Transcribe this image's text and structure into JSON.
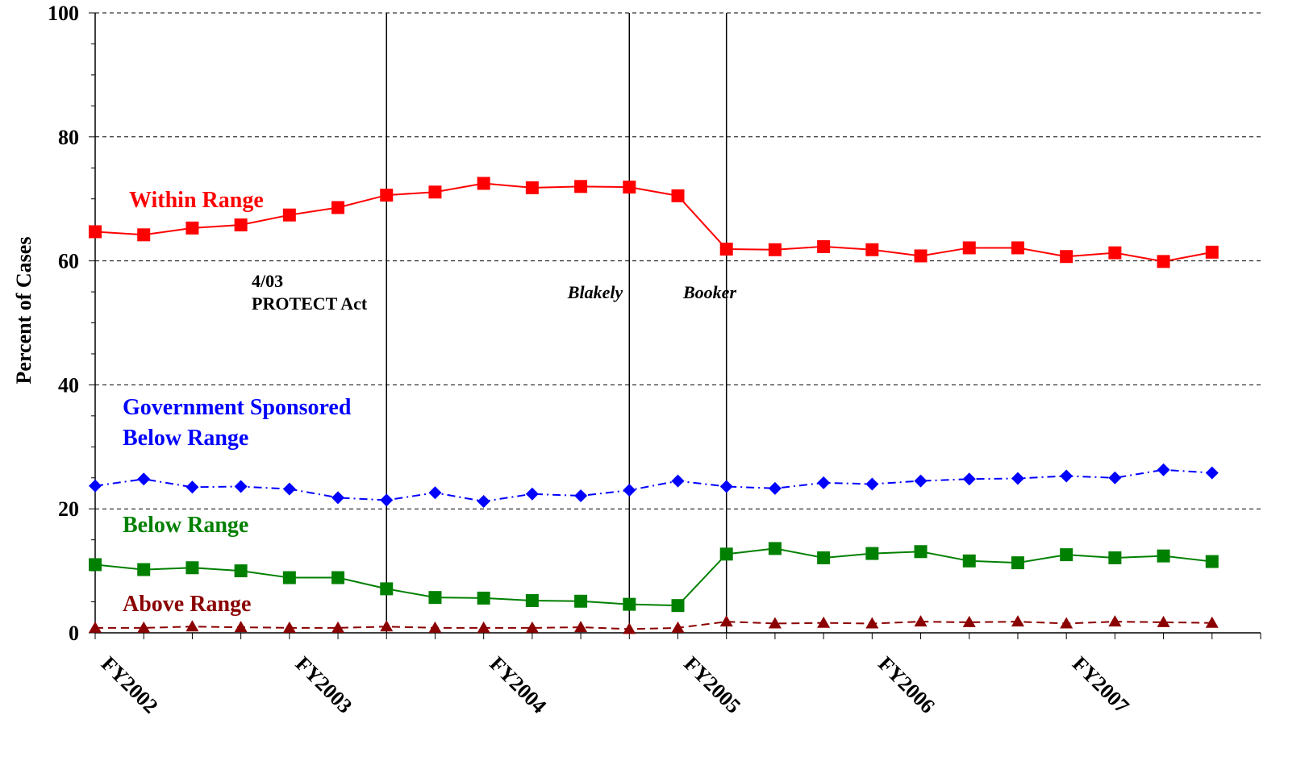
{
  "chart_data": {
    "type": "line",
    "title": "",
    "ylabel": "Percent of Cases",
    "xlabel": "",
    "ylim": [
      0,
      100
    ],
    "y_ticks": [
      "0",
      "20",
      "40",
      "60",
      "80",
      "100"
    ],
    "grid": "horizontal dashed at major y ticks",
    "x_labels": [
      {
        "label": "FY2002",
        "index": 0
      },
      {
        "label": "FY2003",
        "index": 4
      },
      {
        "label": "FY2004",
        "index": 8
      },
      {
        "label": "FY2005",
        "index": 12
      },
      {
        "label": "FY2006",
        "index": 16
      },
      {
        "label": "FY2007",
        "index": 20
      }
    ],
    "period_count": 24,
    "events": [
      {
        "label_lines": [
          "4/03",
          "PROTECT Act"
        ],
        "index": 6,
        "italic": false
      },
      {
        "label_lines": [
          "Blakely"
        ],
        "index": 11,
        "italic": true
      },
      {
        "label_lines": [
          "Booker"
        ],
        "index": 13,
        "italic": true
      }
    ],
    "series": [
      {
        "name": "Within Range",
        "label_lines": [
          "Within Range"
        ],
        "color": "#FF0000",
        "marker": "square",
        "line": "solid",
        "values": [
          64.7,
          64.2,
          65.3,
          65.8,
          67.4,
          68.6,
          70.6,
          71.1,
          72.5,
          71.8,
          72.0,
          71.9,
          70.5,
          61.9,
          61.8,
          62.3,
          61.8,
          60.8,
          62.1,
          62.1,
          60.7,
          61.3,
          59.9,
          61.4
        ]
      },
      {
        "name": "Government Sponsored Below Range",
        "label_lines": [
          "Government Sponsored",
          "Below Range"
        ],
        "color": "#0000FF",
        "marker": "diamond",
        "line": "dash-dot",
        "values": [
          23.7,
          24.8,
          23.5,
          23.6,
          23.2,
          21.8,
          21.4,
          22.6,
          21.2,
          22.4,
          22.1,
          23.0,
          24.5,
          23.6,
          23.3,
          24.2,
          24.0,
          24.5,
          24.8,
          24.9,
          25.3,
          25.0,
          26.3,
          25.8
        ]
      },
      {
        "name": "Below Range",
        "label_lines": [
          "Below Range"
        ],
        "color": "#008000",
        "marker": "square",
        "line": "solid",
        "values": [
          11.0,
          10.2,
          10.5,
          10.0,
          8.9,
          8.9,
          7.1,
          5.7,
          5.6,
          5.2,
          5.1,
          4.6,
          4.4,
          12.7,
          13.6,
          12.1,
          12.8,
          13.1,
          11.6,
          11.3,
          12.6,
          12.1,
          12.4,
          11.5
        ]
      },
      {
        "name": "Above Range",
        "label_lines": [
          "Above Range"
        ],
        "color": "#8B0000",
        "marker": "triangle",
        "line": "dashed",
        "values": [
          0.8,
          0.8,
          1.0,
          0.9,
          0.8,
          0.8,
          1.0,
          0.8,
          0.8,
          0.8,
          0.9,
          0.6,
          0.8,
          1.8,
          1.5,
          1.6,
          1.5,
          1.8,
          1.7,
          1.8,
          1.5,
          1.8,
          1.7,
          1.6
        ]
      }
    ]
  }
}
